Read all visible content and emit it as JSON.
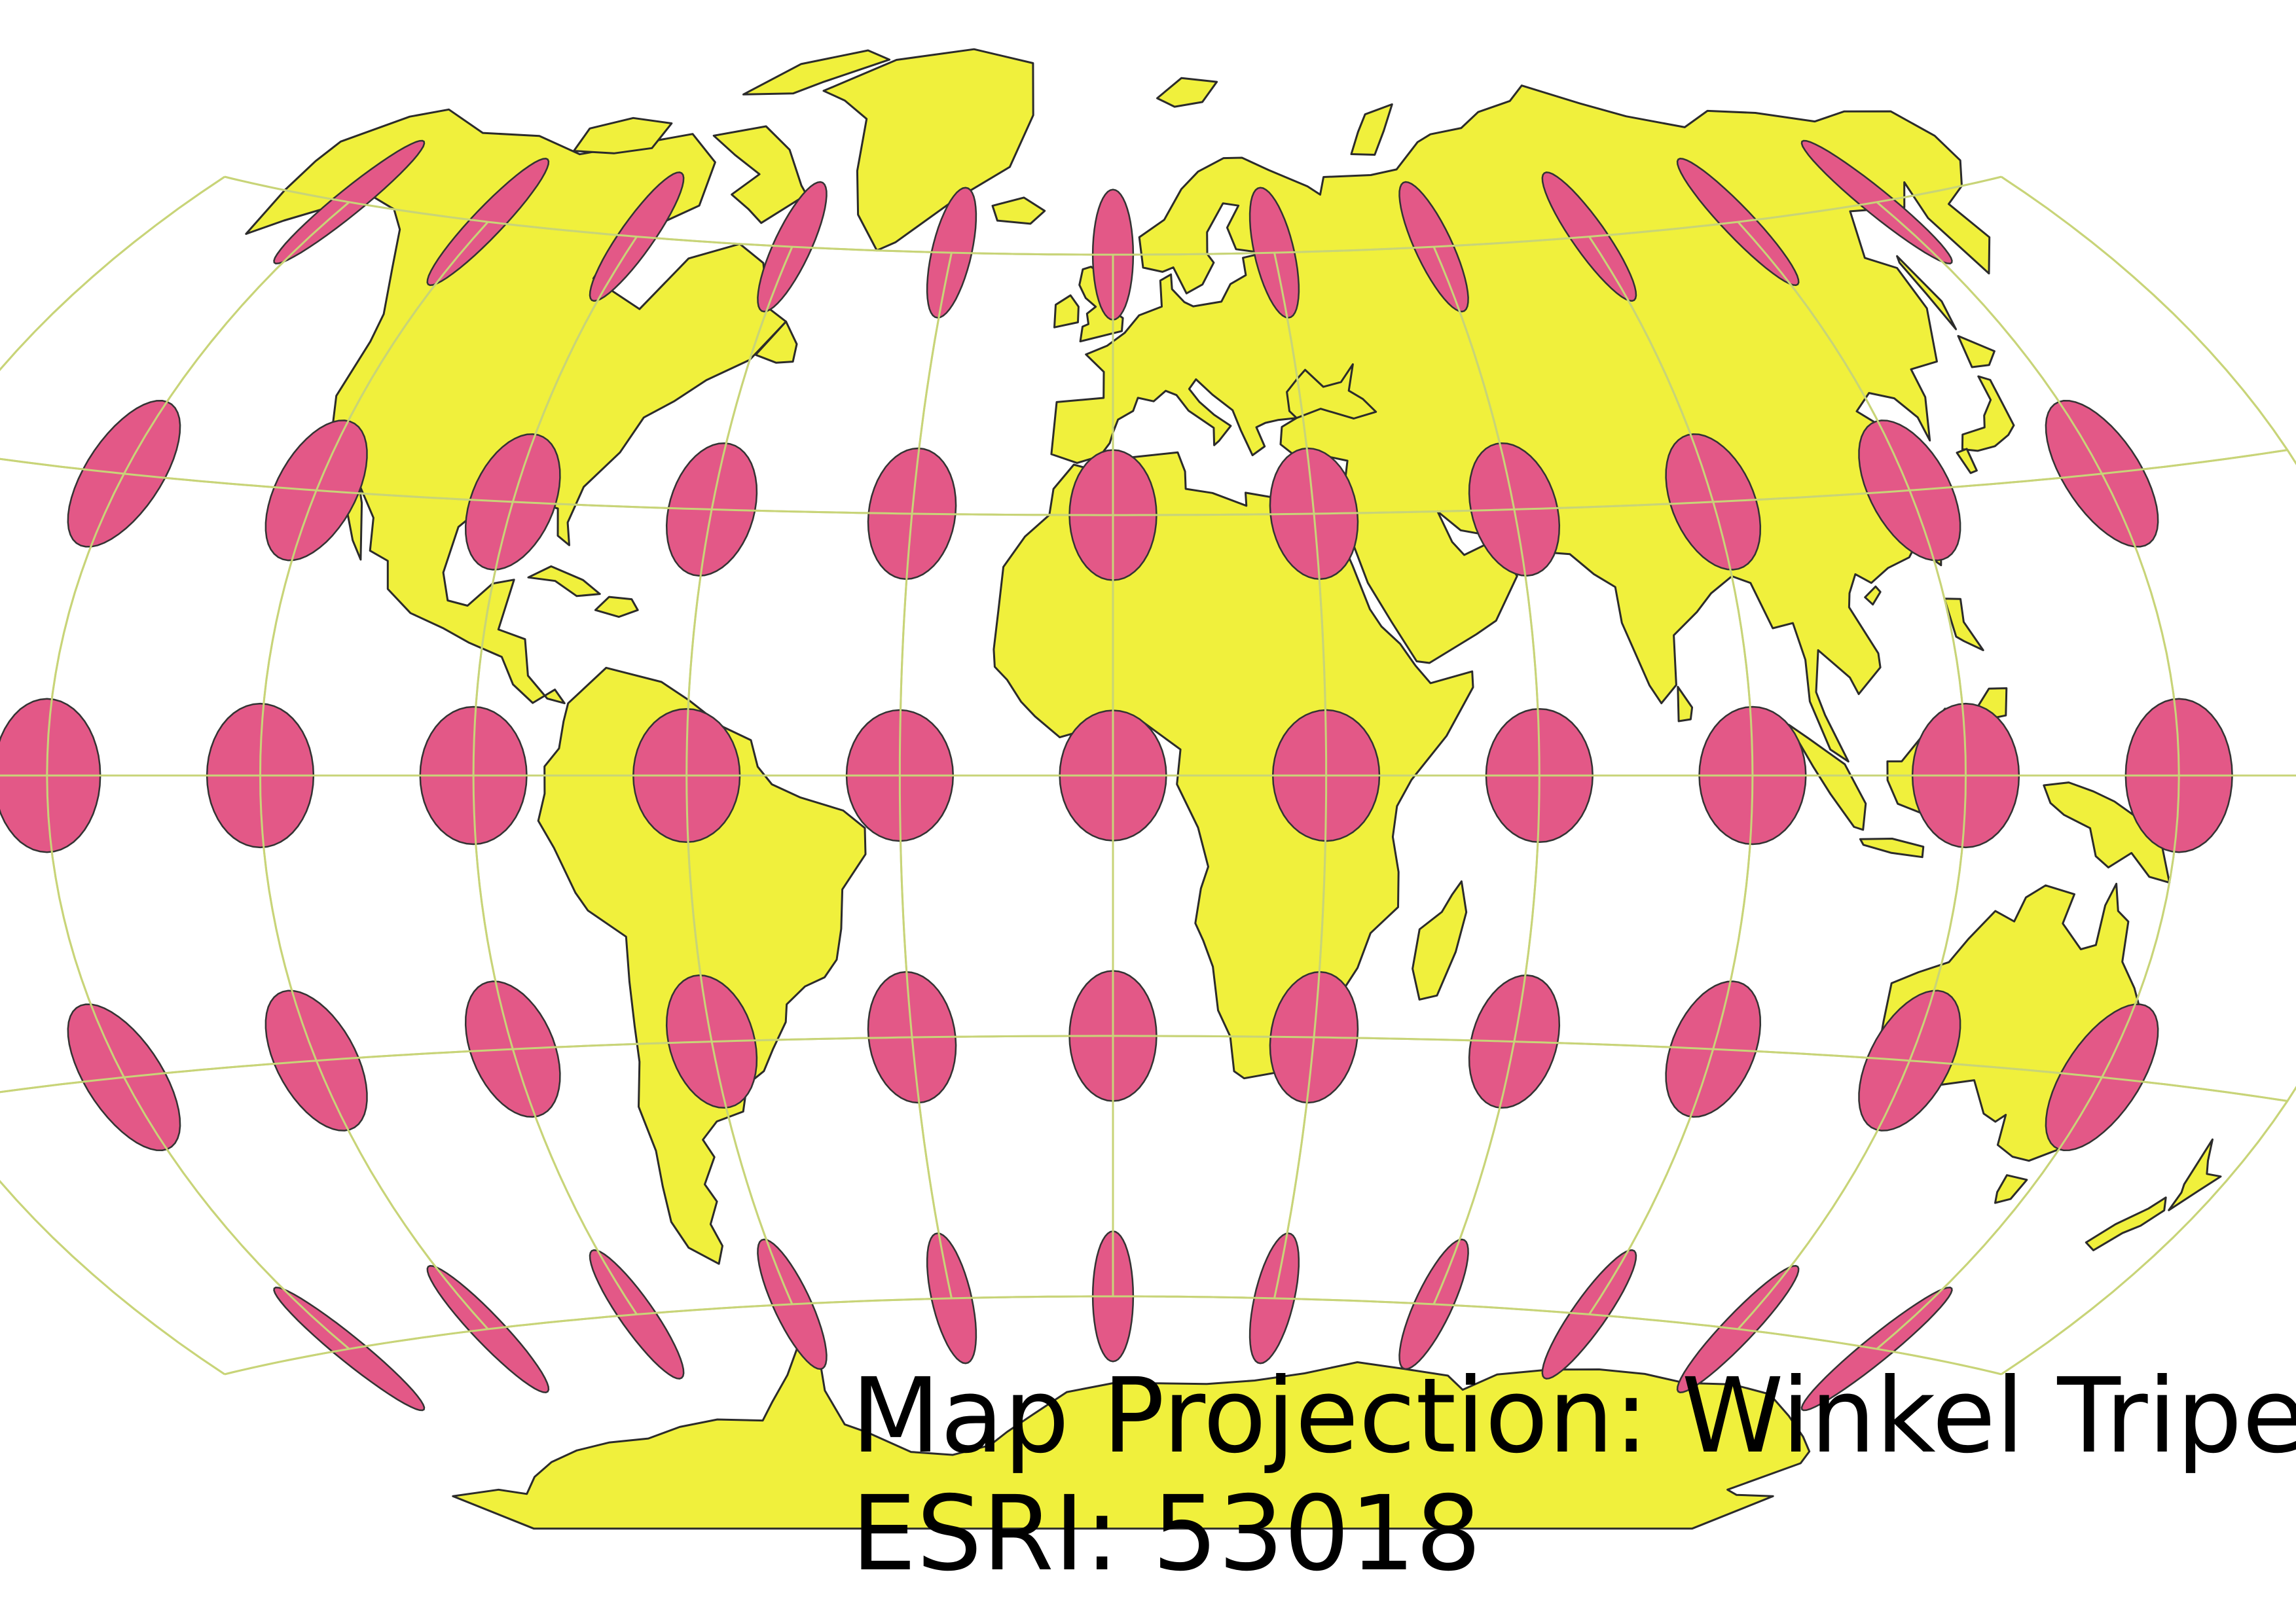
{
  "map": {
    "projection_label": "Map Projection: Winkel Tripel",
    "code_label": "ESRI: 53018",
    "projection_name": "Winkel Tripel",
    "esri_code": "53018",
    "colors": {
      "background": "#ffffff",
      "land": "#f0f03c",
      "coastline": "#2b2b2b",
      "graticule": "#c8d478",
      "tissot_fill": "#e35887",
      "tissot_stroke": "#333333"
    },
    "graticule": {
      "latitudes_deg": [
        -60,
        -30,
        0,
        30,
        60
      ],
      "longitudes_deg": [
        -180,
        -150,
        -120,
        -90,
        -60,
        -30,
        0,
        30,
        60,
        90,
        120,
        150,
        180
      ]
    },
    "tissot_indicatrix": {
      "latitudes_deg": [
        -60,
        -30,
        0,
        30,
        60
      ],
      "longitudes_deg": [
        -150,
        -120,
        -90,
        -60,
        -30,
        0,
        30,
        60,
        90,
        120,
        150
      ]
    },
    "icons": [
      "world-map",
      "tissot-ellipse"
    ]
  }
}
